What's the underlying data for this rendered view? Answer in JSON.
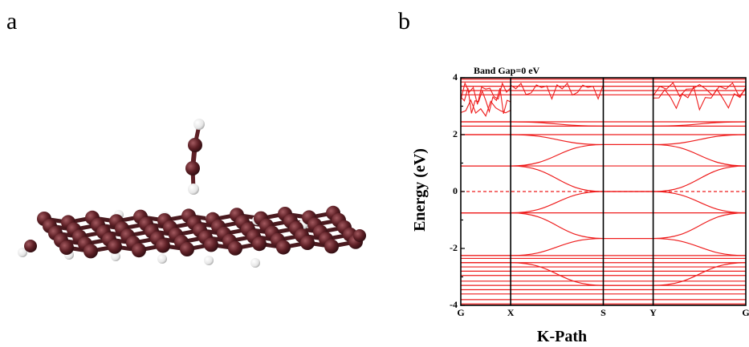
{
  "panels": {
    "a": "a",
    "b": "b"
  },
  "band_gap_label": "Band Gap=0 eV",
  "chart_data": {
    "type": "line",
    "title": "Band Gap=0 eV",
    "xlabel": "K-Path",
    "ylabel": "Energy (eV)",
    "ylim": [
      -4,
      4
    ],
    "yticks": [
      "4",
      "2",
      "0",
      "-2",
      "-4"
    ],
    "kpoints": [
      "G",
      "X",
      "S",
      "Y",
      "G"
    ],
    "kpoint_positions": [
      0,
      0.175,
      0.5,
      0.675,
      1.0
    ],
    "fermi_level": 0,
    "line_color": "#ee1c1c",
    "flat_bands": [
      -3.95,
      -3.8,
      -3.6,
      -3.45,
      -3.3,
      -3.15,
      -2.95,
      -2.8,
      -2.65,
      -2.5,
      -2.35,
      -2.25,
      -0.75,
      0.9,
      2.0,
      2.3,
      2.45,
      3.4,
      3.55,
      3.7,
      3.85,
      3.95
    ],
    "dirac_point": 0,
    "dirac_bands": [
      {
        "x": [
          0,
          0.175,
          0.5,
          0.675,
          1.0
        ],
        "y": [
          0.9,
          0.9,
          0.0,
          0.0,
          0.9
        ]
      },
      {
        "x": [
          0,
          0.175,
          0.5,
          0.675,
          1.0
        ],
        "y": [
          -0.75,
          -0.75,
          0.0,
          0.0,
          -0.75
        ]
      },
      {
        "x": [
          0,
          0.175,
          0.5,
          0.675,
          1.0
        ],
        "y": [
          -0.75,
          -0.75,
          -1.65,
          -1.65,
          -0.75
        ]
      },
      {
        "x": [
          0,
          0.175,
          0.5,
          0.675,
          1.0
        ],
        "y": [
          0.9,
          0.9,
          1.65,
          1.65,
          0.9
        ]
      },
      {
        "x": [
          0,
          0.175,
          0.5,
          0.675,
          1.0
        ],
        "y": [
          2.0,
          2.0,
          1.65,
          1.65,
          2.0
        ]
      },
      {
        "x": [
          0,
          0.175,
          0.5,
          0.675,
          1.0
        ],
        "y": [
          -2.25,
          -2.25,
          -1.65,
          -1.65,
          -2.25
        ]
      },
      {
        "x": [
          0,
          0.175,
          0.5,
          0.675,
          1.0
        ],
        "y": [
          2.45,
          2.45,
          2.3,
          2.3,
          2.45
        ]
      },
      {
        "x": [
          0,
          0.175,
          0.5,
          0.675,
          1.0
        ],
        "y": [
          -2.5,
          -2.5,
          -3.3,
          -3.3,
          -2.5
        ]
      }
    ]
  },
  "molecule": {
    "atom_color_carbon": "#5e2026",
    "atom_color_hydrogen": "#f0f0f0"
  }
}
